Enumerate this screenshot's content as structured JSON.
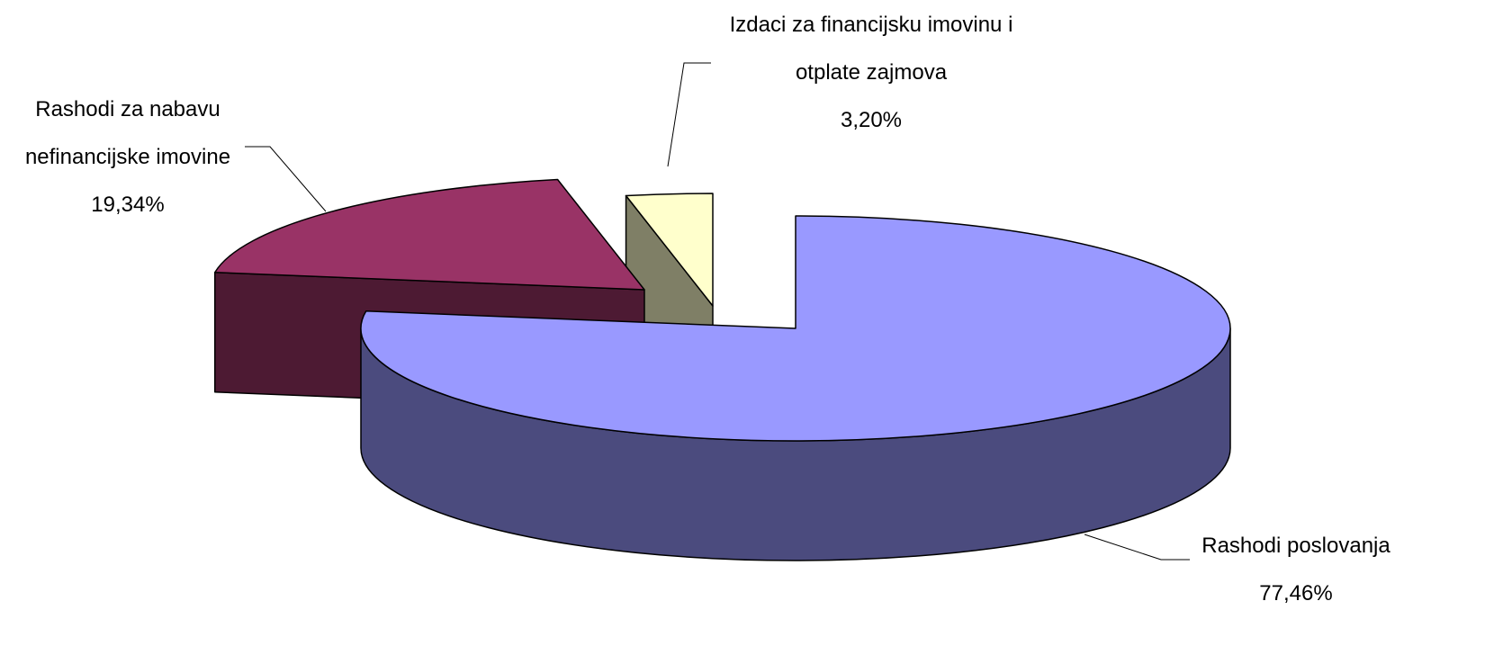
{
  "chart_data": {
    "type": "pie3d",
    "categories": [
      "Rashodi poslovanja",
      "Rashodi za nabavu nefinancijske imovine",
      "Izdaci za financijsku imovinu i otplate zajmova"
    ],
    "values": [
      77.46,
      19.34,
      3.2
    ],
    "value_labels": [
      "77,46%",
      "19,34%",
      "3,20%"
    ],
    "colors": [
      "#9999ff",
      "#993366",
      "#ffffcc"
    ],
    "side_colors": [
      "#4b4b7e",
      "#4d1a33",
      "#7f7f66"
    ]
  }
}
